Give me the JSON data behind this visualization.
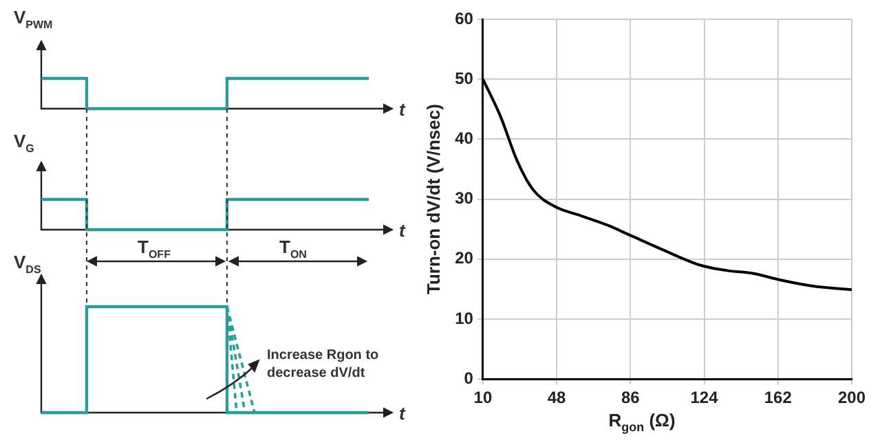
{
  "chart_data": [
    {
      "type": "other",
      "annotations": [
        "V$_{PWM}$",
        "t",
        "V$_{G}$",
        "t",
        "T$_{OFF}$",
        "T$_{ON}$",
        "V$_{DS}$",
        "Increase Rgon to decrease dV/dt",
        "t"
      ]
    },
    {
      "type": "line",
      "xlabel": "R$_{gon}$ (Ω)",
      "ylabel": "Turn-on dV/dt (V/nsec)",
      "x": [
        10,
        19.2,
        27.5,
        35.8,
        46.9,
        60.8,
        74.6,
        85.7,
        102.4,
        121.8,
        135.7,
        149.5,
        163.4,
        180,
        200
      ],
      "series": [
        {
          "color": "#000000",
          "values": [
            50,
            43.7,
            36.5,
            31.6,
            28.8,
            27.2,
            25.6,
            24.0,
            21.6,
            19.0,
            18.1,
            17.6,
            16.5,
            15.5,
            14.9
          ]
        }
      ],
      "xlim": [
        10,
        200
      ],
      "xticks": [
        10,
        48,
        86,
        124,
        162,
        200
      ],
      "ylim": [
        0,
        60
      ],
      "yticks": [
        0,
        10,
        20,
        30,
        40,
        50,
        60
      ],
      "grid": true,
      "legend": false,
      "marker": "none",
      "line_style": "solid"
    }
  ]
}
